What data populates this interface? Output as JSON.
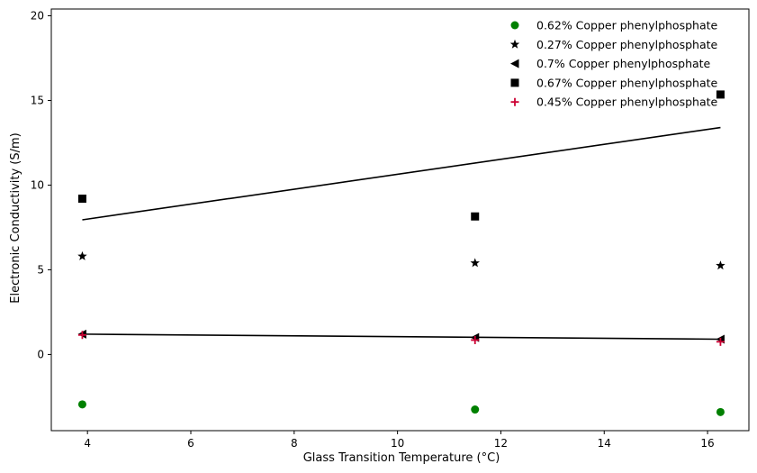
{
  "chart_data": {
    "type": "scatter",
    "title": "",
    "xlabel": "Glass Transition Temperature (°C)",
    "ylabel": "Electronic Conductivity (S/m)",
    "xlim": [
      3.3,
      16.8
    ],
    "ylim": [
      -4.5,
      20.4
    ],
    "xticks": [
      4,
      6,
      8,
      10,
      12,
      14,
      16
    ],
    "yticks": [
      0,
      5,
      10,
      15,
      20
    ],
    "grid": false,
    "legend": "top-right",
    "series": [
      {
        "name": "0.62% Copper phenylphosphate",
        "marker": "circle",
        "color": "#008000",
        "x": [
          3.9,
          11.5,
          16.25
        ],
        "y": [
          -2.95,
          -3.25,
          -3.4
        ]
      },
      {
        "name": "0.27% Copper phenylphosphate",
        "marker": "star",
        "color": "#000000",
        "x": [
          3.9,
          11.5,
          16.25
        ],
        "y": [
          5.8,
          5.4,
          5.25
        ]
      },
      {
        "name": "0.7% Copper phenylphosphate",
        "marker": "triangle-left",
        "color": "#000000",
        "x": [
          3.9,
          11.5,
          16.25
        ],
        "y": [
          1.2,
          1.0,
          0.9
        ]
      },
      {
        "name": "0.67% Copper phenylphosphate",
        "marker": "square",
        "color": "#000000",
        "x": [
          3.9,
          11.5,
          16.25
        ],
        "y": [
          9.2,
          8.15,
          15.35
        ]
      },
      {
        "name": "0.45% Copper phenylphosphate",
        "marker": "plus",
        "color": "#cc0033",
        "x": [
          3.9,
          11.5,
          16.25
        ],
        "y": [
          1.15,
          0.85,
          0.75
        ]
      }
    ],
    "trendlines": [
      {
        "x": [
          3.9,
          16.25
        ],
        "y": [
          7.95,
          13.4
        ],
        "color": "#000000"
      },
      {
        "x": [
          3.9,
          16.25
        ],
        "y": [
          1.2,
          0.9
        ],
        "color": "#000000"
      }
    ]
  }
}
